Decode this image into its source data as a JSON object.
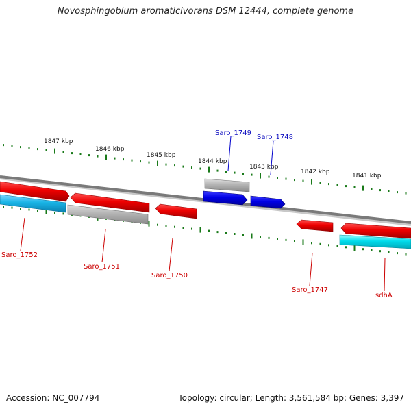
{
  "title": "Novosphingobium aromaticivorans DSM 12444, complete genome",
  "footer": {
    "accession": "Accession: NC_007794",
    "topology": "Topology: circular; Length: 3,561,584 bp; Genes: 3,397"
  },
  "colors": {
    "backbone": "#7a7a7a",
    "ticks": "#1a7a1a",
    "forward_gene": "#e00000",
    "reverse_gene_label": "#cc0000",
    "blue_gene": "#0000dd",
    "blue_gene_label": "#1010c0",
    "pseudo_gene": "#b4b4b4",
    "rna_gene": "#00d8e8",
    "rna_gene_alt": "#19b4e6"
  },
  "tick_labels": [
    "1847 kbp",
    "1846 kbp",
    "1845 kbp",
    "1844 kbp",
    "1843 kbp",
    "1842 kbp",
    "1841 kbp"
  ],
  "top_genes": [
    "Saro_1749",
    "Saro_1748"
  ],
  "bottom_genes": [
    "Saro_1752",
    "Saro_1751",
    "Saro_1750",
    "Saro_1747",
    "sdhA"
  ]
}
